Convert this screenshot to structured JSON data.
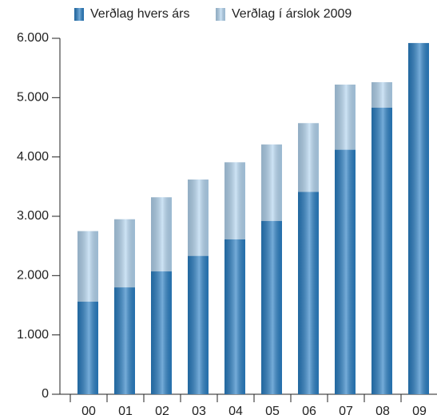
{
  "chart_data": {
    "type": "bar",
    "categories": [
      "00",
      "01",
      "02",
      "03",
      "04",
      "05",
      "06",
      "07",
      "08",
      "09"
    ],
    "series": [
      {
        "name": "Verðlag hvers árs",
        "color": "#2a7fc4",
        "values": [
          1560,
          1800,
          2070,
          2330,
          2610,
          2920,
          3410,
          4120,
          4830,
          5920
        ]
      },
      {
        "name": "Verðlag í árslok 2009",
        "color": "#b3d5f0",
        "values": [
          2750,
          2950,
          3320,
          3620,
          3910,
          4210,
          4570,
          5220,
          5260,
          5920
        ]
      }
    ],
    "ylim": [
      0,
      6000
    ],
    "yticks": [
      0,
      {
        "value": 1000,
        "label": "1.000"
      },
      {
        "value": 2000,
        "label": "2.000"
      },
      {
        "value": 3000,
        "label": "3.000"
      },
      {
        "value": 4000,
        "label": "4.000"
      },
      {
        "value": 5000,
        "label": "5.000"
      },
      {
        "value": 6000,
        "label": "6.000"
      }
    ],
    "grid": false,
    "legend": "top"
  }
}
